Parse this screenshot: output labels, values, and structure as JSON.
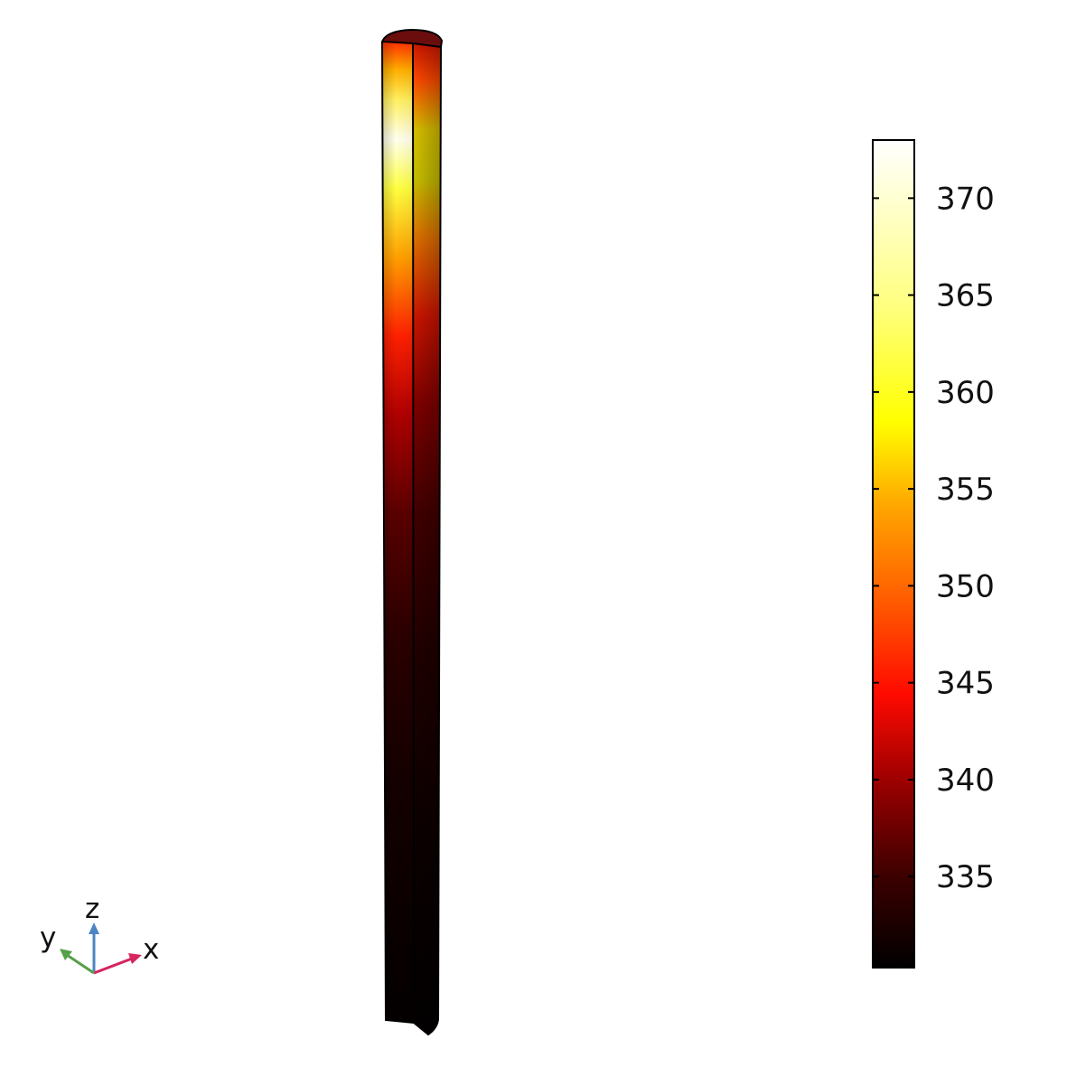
{
  "colorbar": {
    "ticks": [
      {
        "value": 370,
        "label": "370"
      },
      {
        "value": 365,
        "label": "365"
      },
      {
        "value": 360,
        "label": "360"
      },
      {
        "value": 355,
        "label": "355"
      },
      {
        "value": 350,
        "label": "350"
      },
      {
        "value": 345,
        "label": "345"
      },
      {
        "value": 340,
        "label": "340"
      },
      {
        "value": 335,
        "label": "335"
      }
    ],
    "range": [
      330.3,
      373
    ],
    "colormap": "heat",
    "colors": [
      "#000000",
      "#5a0000",
      "#c80000",
      "#ff2000",
      "#ff8000",
      "#ffc000",
      "#ffff10",
      "#ffff90",
      "#ffffff"
    ]
  },
  "axis_triad": {
    "x": {
      "label": "x",
      "color": "#d6245e"
    },
    "y": {
      "label": "y",
      "color": "#56a04a"
    },
    "z": {
      "label": "z",
      "color": "#4d84c4"
    }
  }
}
